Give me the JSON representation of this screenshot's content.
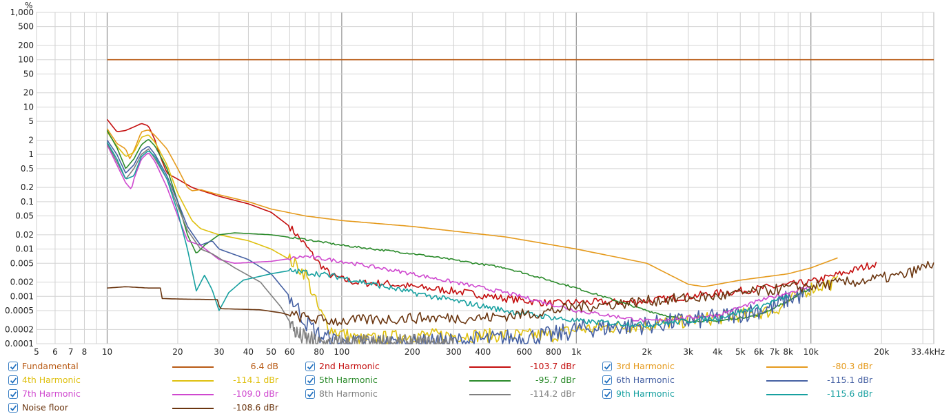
{
  "chart_data": {
    "type": "line",
    "x_scale": "log",
    "y_scale": "log",
    "xlim": [
      5,
      33400
    ],
    "ylim": [
      0.0001,
      1000
    ],
    "y_unit": "%",
    "x_unit": "kHz",
    "grid": true,
    "x_ticks": [
      {
        "v": 5,
        "l": "5"
      },
      {
        "v": 6,
        "l": "6"
      },
      {
        "v": 7,
        "l": "7"
      },
      {
        "v": 8,
        "l": "8"
      },
      {
        "v": 10,
        "l": "10"
      },
      {
        "v": 20,
        "l": "20"
      },
      {
        "v": 30,
        "l": "30"
      },
      {
        "v": 40,
        "l": "40"
      },
      {
        "v": 50,
        "l": "50"
      },
      {
        "v": 60,
        "l": "60"
      },
      {
        "v": 80,
        "l": "80"
      },
      {
        "v": 100,
        "l": "100"
      },
      {
        "v": 200,
        "l": "200"
      },
      {
        "v": 300,
        "l": "300"
      },
      {
        "v": 400,
        "l": "400"
      },
      {
        "v": 600,
        "l": "600"
      },
      {
        "v": 800,
        "l": "800"
      },
      {
        "v": 1000,
        "l": "1k"
      },
      {
        "v": 2000,
        "l": "2k"
      },
      {
        "v": 3000,
        "l": "3k"
      },
      {
        "v": 4000,
        "l": "4k"
      },
      {
        "v": 5000,
        "l": "5k"
      },
      {
        "v": 6000,
        "l": "6k"
      },
      {
        "v": 7000,
        "l": "7k"
      },
      {
        "v": 8000,
        "l": "8k"
      },
      {
        "v": 10000,
        "l": "10k"
      },
      {
        "v": 20000,
        "l": "20k"
      },
      {
        "v": 33400,
        "l": "33.4kHz"
      }
    ],
    "y_ticks": [
      {
        "v": 1000,
        "l": "1,000"
      },
      {
        "v": 500,
        "l": "500"
      },
      {
        "v": 200,
        "l": "200"
      },
      {
        "v": 100,
        "l": "100"
      },
      {
        "v": 50,
        "l": "50"
      },
      {
        "v": 20,
        "l": "20"
      },
      {
        "v": 10,
        "l": "10"
      },
      {
        "v": 5,
        "l": "5"
      },
      {
        "v": 2,
        "l": "2"
      },
      {
        "v": 1,
        "l": "1"
      },
      {
        "v": 0.5,
        "l": "0.5"
      },
      {
        "v": 0.2,
        "l": "0.2"
      },
      {
        "v": 0.1,
        "l": "0.1"
      },
      {
        "v": 0.05,
        "l": "0.05"
      },
      {
        "v": 0.02,
        "l": "0.02"
      },
      {
        "v": 0.01,
        "l": "0.01"
      },
      {
        "v": 0.005,
        "l": "0.005"
      },
      {
        "v": 0.002,
        "l": "0.002"
      },
      {
        "v": 0.001,
        "l": "0.001"
      },
      {
        "v": 0.0005,
        "l": "0.0005"
      },
      {
        "v": 0.0002,
        "l": "0.0002"
      },
      {
        "v": 0.0001,
        "l": "0.0001"
      }
    ],
    "series": [
      {
        "name": "Fundamental",
        "color": "#b85a14",
        "value": "6.4 dB",
        "noise": 0,
        "points": [
          [
            10,
            100
          ],
          [
            33400,
            100
          ]
        ]
      },
      {
        "name": "2nd Harmonic",
        "color": "#c40e0e",
        "value": "-103.7 dBr",
        "noise": 0.08,
        "points": [
          [
            10,
            5.5
          ],
          [
            11,
            3
          ],
          [
            12,
            3.2
          ],
          [
            13,
            3.8
          ],
          [
            14,
            4.5
          ],
          [
            15,
            4
          ],
          [
            16,
            2
          ],
          [
            17,
            0.8
          ],
          [
            18,
            0.4
          ],
          [
            20,
            0.3
          ],
          [
            23,
            0.2
          ],
          [
            30,
            0.13
          ],
          [
            40,
            0.09
          ],
          [
            50,
            0.06
          ],
          [
            60,
            0.03
          ],
          [
            70,
            0.012
          ],
          [
            80,
            0.005
          ],
          [
            90,
            0.0028
          ],
          [
            100,
            0.0023
          ],
          [
            120,
            0.0019
          ],
          [
            150,
            0.0019
          ],
          [
            200,
            0.0016
          ],
          [
            300,
            0.0013
          ],
          [
            500,
            0.0009
          ],
          [
            800,
            0.0007
          ],
          [
            1000,
            0.00075
          ],
          [
            1500,
            0.00075
          ],
          [
            2000,
            0.0008
          ],
          [
            3000,
            0.001
          ],
          [
            5000,
            0.0013
          ],
          [
            10000,
            0.002
          ],
          [
            15000,
            0.0035
          ],
          [
            19000,
            0.005
          ]
        ]
      },
      {
        "name": "3rd Harmonic",
        "color": "#e59a1c",
        "value": "-80.3 dBr",
        "noise": 0,
        "points": [
          [
            10,
            3.5
          ],
          [
            11,
            1.7
          ],
          [
            12,
            1.3
          ],
          [
            12.5,
            0.8
          ],
          [
            13,
            1.2
          ],
          [
            14,
            3
          ],
          [
            15,
            3.3
          ],
          [
            16,
            2.5
          ],
          [
            18,
            1.3
          ],
          [
            20,
            0.5
          ],
          [
            22,
            0.2
          ],
          [
            23,
            0.17
          ],
          [
            25,
            0.18
          ],
          [
            30,
            0.14
          ],
          [
            40,
            0.1
          ],
          [
            50,
            0.07
          ],
          [
            70,
            0.05
          ],
          [
            100,
            0.04
          ],
          [
            200,
            0.03
          ],
          [
            500,
            0.018
          ],
          [
            1000,
            0.01
          ],
          [
            2000,
            0.005
          ],
          [
            3000,
            0.0018
          ],
          [
            3500,
            0.0016
          ],
          [
            4000,
            0.0018
          ],
          [
            5000,
            0.0022
          ],
          [
            8000,
            0.003
          ],
          [
            10000,
            0.004
          ],
          [
            13000,
            0.0065
          ]
        ]
      },
      {
        "name": "4th Harmonic",
        "color": "#dfc00f",
        "value": "-114.1 dBr",
        "noise": 0.15,
        "points": [
          [
            10,
            3
          ],
          [
            11,
            1.5
          ],
          [
            12,
            0.9
          ],
          [
            13,
            1.1
          ],
          [
            14,
            2.3
          ],
          [
            15,
            2.6
          ],
          [
            16,
            1.8
          ],
          [
            18,
            0.6
          ],
          [
            20,
            0.15
          ],
          [
            23,
            0.04
          ],
          [
            25,
            0.027
          ],
          [
            30,
            0.02
          ],
          [
            40,
            0.015
          ],
          [
            50,
            0.01
          ],
          [
            60,
            0.006
          ],
          [
            70,
            0.003
          ],
          [
            80,
            0.0005
          ],
          [
            90,
            0.0002
          ],
          [
            120,
            0.00012
          ],
          [
            200,
            0.00015
          ],
          [
            300,
            0.00015
          ],
          [
            500,
            0.00015
          ],
          [
            800,
            0.00015
          ],
          [
            1000,
            0.0002
          ],
          [
            2000,
            0.00025
          ],
          [
            4000,
            0.00035
          ],
          [
            7000,
            0.0005
          ],
          [
            8000,
            0.0008
          ],
          [
            10000,
            0.0015
          ],
          [
            13000,
            0.002
          ]
        ]
      },
      {
        "name": "5th Harmonic",
        "color": "#2a8a2a",
        "value": "-95.7 dBr",
        "noise": 0.02,
        "points": [
          [
            10,
            3.2
          ],
          [
            11,
            1.4
          ],
          [
            12,
            0.5
          ],
          [
            13,
            0.8
          ],
          [
            14,
            1.6
          ],
          [
            15,
            2.1
          ],
          [
            16,
            1.5
          ],
          [
            18,
            0.5
          ],
          [
            20,
            0.1
          ],
          [
            22,
            0.02
          ],
          [
            24,
            0.008
          ],
          [
            26,
            0.012
          ],
          [
            30,
            0.02
          ],
          [
            35,
            0.022
          ],
          [
            50,
            0.02
          ],
          [
            70,
            0.016
          ],
          [
            100,
            0.012
          ],
          [
            200,
            0.008
          ],
          [
            500,
            0.004
          ],
          [
            1000,
            0.0015
          ],
          [
            2000,
            0.0005
          ],
          [
            3000,
            0.0003
          ],
          [
            4000,
            0.0003
          ],
          [
            6000,
            0.0004
          ],
          [
            8000,
            0.0008
          ],
          [
            10000,
            0.0015
          ]
        ]
      },
      {
        "name": "6th Harmonic",
        "color": "#4661a3",
        "value": "-115.1 dBr",
        "noise": 0.2,
        "points": [
          [
            10,
            2
          ],
          [
            11,
            1
          ],
          [
            12,
            0.4
          ],
          [
            13,
            0.6
          ],
          [
            14,
            1.2
          ],
          [
            15,
            1.5
          ],
          [
            16,
            1
          ],
          [
            18,
            0.35
          ],
          [
            20,
            0.1
          ],
          [
            22,
            0.03
          ],
          [
            25,
            0.012
          ],
          [
            28,
            0.015
          ],
          [
            30,
            0.01
          ],
          [
            40,
            0.006
          ],
          [
            50,
            0.003
          ],
          [
            60,
            0.001
          ],
          [
            70,
            0.0003
          ],
          [
            80,
            0.00015
          ],
          [
            100,
            0.0001
          ],
          [
            200,
            0.0001
          ],
          [
            400,
            0.00012
          ],
          [
            800,
            0.00015
          ],
          [
            1000,
            0.0002
          ],
          [
            2000,
            0.00025
          ],
          [
            4000,
            0.00035
          ],
          [
            7000,
            0.0006
          ],
          [
            8000,
            0.0009
          ],
          [
            10000,
            0.0012
          ]
        ]
      },
      {
        "name": "7th Harmonic",
        "color": "#cf48cf",
        "value": "-109.0 dBr",
        "noise": 0.04,
        "points": [
          [
            10,
            1.6
          ],
          [
            11,
            0.6
          ],
          [
            12,
            0.25
          ],
          [
            12.7,
            0.18
          ],
          [
            13,
            0.3
          ],
          [
            14,
            0.8
          ],
          [
            15,
            1.1
          ],
          [
            16,
            0.7
          ],
          [
            18,
            0.2
          ],
          [
            20,
            0.05
          ],
          [
            22,
            0.015
          ],
          [
            25,
            0.012
          ],
          [
            30,
            0.006
          ],
          [
            35,
            0.005
          ],
          [
            50,
            0.0055
          ],
          [
            70,
            0.007
          ],
          [
            100,
            0.0055
          ],
          [
            200,
            0.003
          ],
          [
            500,
            0.0012
          ],
          [
            1000,
            0.0005
          ],
          [
            2000,
            0.0003
          ],
          [
            4000,
            0.0004
          ],
          [
            6000,
            0.0008
          ],
          [
            8000,
            0.0012
          ],
          [
            10000,
            0.0016
          ]
        ]
      },
      {
        "name": "8th Harmonic",
        "color": "#7f7f7f",
        "value": "-114.2 dBr",
        "noise": 0.2,
        "points": [
          [
            10,
            1.7
          ],
          [
            11,
            0.7
          ],
          [
            12,
            0.3
          ],
          [
            13,
            0.5
          ],
          [
            14,
            1
          ],
          [
            15,
            1.3
          ],
          [
            16,
            0.8
          ],
          [
            18,
            0.3
          ],
          [
            20,
            0.08
          ],
          [
            22,
            0.025
          ],
          [
            25,
            0.01
          ],
          [
            28,
            0.008
          ],
          [
            35,
            0.004
          ],
          [
            45,
            0.002
          ],
          [
            55,
            0.0006
          ],
          [
            65,
            0.00015
          ],
          [
            80,
            0.0001
          ],
          [
            300,
            0.0001
          ]
        ]
      },
      {
        "name": "9th Harmonic",
        "color": "#17a0a0",
        "value": "-115.6 dBr",
        "noise": 0.06,
        "points": [
          [
            10,
            1.8
          ],
          [
            11,
            0.8
          ],
          [
            12,
            0.3
          ],
          [
            13,
            0.35
          ],
          [
            14,
            0.9
          ],
          [
            15,
            1.2
          ],
          [
            16,
            0.9
          ],
          [
            18,
            0.3
          ],
          [
            20,
            0.06
          ],
          [
            22,
            0.01
          ],
          [
            24,
            0.0013
          ],
          [
            26,
            0.0028
          ],
          [
            28,
            0.0014
          ],
          [
            30,
            0.0005
          ],
          [
            33,
            0.0012
          ],
          [
            38,
            0.0022
          ],
          [
            50,
            0.003
          ],
          [
            60,
            0.0035
          ],
          [
            80,
            0.003
          ],
          [
            100,
            0.0025
          ],
          [
            200,
            0.0012
          ],
          [
            500,
            0.0005
          ],
          [
            1000,
            0.0003
          ],
          [
            2000,
            0.00025
          ],
          [
            4000,
            0.00035
          ],
          [
            6000,
            0.0006
          ],
          [
            8000,
            0.001
          ]
        ]
      },
      {
        "name": "Noise floor",
        "color": "#6b3610",
        "value": "-108.6 dBr",
        "noise": 0.12,
        "points": [
          [
            10,
            0.0015
          ],
          [
            12,
            0.0016
          ],
          [
            15,
            0.0015
          ],
          [
            17,
            0.0015
          ],
          [
            17.1,
            0.0009
          ],
          [
            20,
            0.00088
          ],
          [
            30,
            0.00085
          ],
          [
            30.1,
            0.00055
          ],
          [
            45,
            0.00052
          ],
          [
            55,
            0.00045
          ],
          [
            60,
            0.0004
          ],
          [
            80,
            0.00032
          ],
          [
            100,
            0.0003
          ],
          [
            200,
            0.00035
          ],
          [
            400,
            0.00035
          ],
          [
            700,
            0.00045
          ],
          [
            1000,
            0.0006
          ],
          [
            1500,
            0.0007
          ],
          [
            2000,
            0.0008
          ],
          [
            4000,
            0.001
          ],
          [
            8000,
            0.0015
          ],
          [
            15000,
            0.002
          ],
          [
            25000,
            0.0028
          ],
          [
            33400,
            0.005
          ]
        ]
      }
    ]
  }
}
